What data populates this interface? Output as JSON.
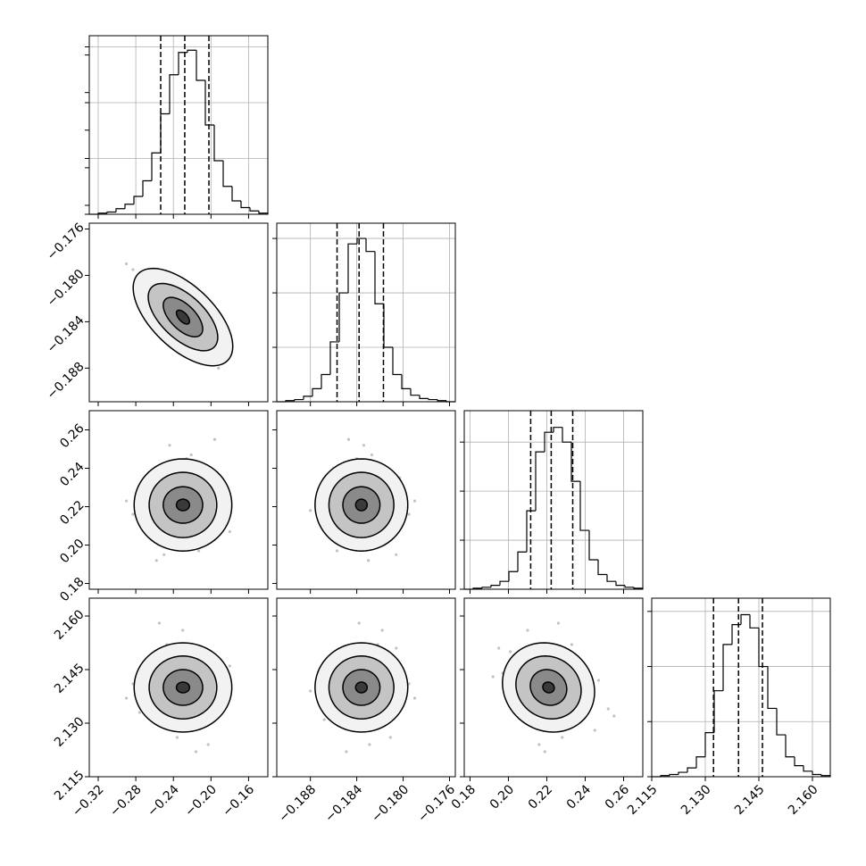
{
  "chart_data": {
    "type": "corner",
    "params": [
      {
        "range": [
          -0.3295,
          -0.1395
        ],
        "ticks": [
          {
            "value": -0.32,
            "label": "−0.32"
          },
          {
            "value": -0.28,
            "label": "−0.28"
          },
          {
            "value": -0.24,
            "label": "−0.24"
          },
          {
            "value": -0.2,
            "label": "−0.20"
          },
          {
            "value": -0.16,
            "label": "−0.16"
          }
        ],
        "bins": [
          -0.3295,
          -0.32,
          -0.3105,
          -0.301,
          -0.2915,
          -0.282,
          -0.2725,
          -0.263,
          -0.2535,
          -0.244,
          -0.2345,
          -0.225,
          -0.2155,
          -0.206,
          -0.1965,
          -0.187,
          -0.1775,
          -0.168,
          -0.1585,
          -0.149,
          -0.1395
        ],
        "counts": [
          0,
          1,
          2,
          5,
          9,
          16,
          30,
          55,
          90,
          125,
          145,
          147,
          120,
          80,
          48,
          25,
          12,
          6,
          3,
          1
        ],
        "hist_ylim": [
          0,
          160
        ],
        "hist_yticks": [
          0,
          50,
          100,
          150
        ],
        "quantiles": [
          -0.2535,
          -0.2279,
          -0.2022
        ]
      },
      {
        "range": [
          -0.1909,
          -0.1755
        ],
        "ticks": [
          {
            "value": -0.188,
            "label": "−0.188"
          },
          {
            "value": -0.184,
            "label": "−0.184"
          },
          {
            "value": -0.18,
            "label": "−0.180"
          },
          {
            "value": -0.176,
            "label": "−0.176"
          }
        ],
        "bins": [
          -0.1909,
          -0.19013,
          -0.18936,
          -0.18859,
          -0.18782,
          -0.18705,
          -0.18628,
          -0.18551,
          -0.18474,
          -0.18397,
          -0.1832,
          -0.18243,
          -0.18166,
          -0.18089,
          -0.18012,
          -0.17935,
          -0.17858,
          -0.17781,
          -0.17704,
          -0.17627,
          -0.1755
        ],
        "counts": [
          0,
          1,
          2,
          5,
          12,
          25,
          55,
          100,
          145,
          150,
          138,
          90,
          50,
          25,
          12,
          6,
          3,
          2,
          1,
          0
        ],
        "hist_ylim": [
          0,
          164
        ],
        "hist_yticks": [
          0,
          50,
          100,
          150
        ],
        "quantiles": [
          -0.1857,
          -0.1838,
          -0.1817
        ]
      },
      {
        "range": [
          0.177,
          0.27
        ],
        "ticks": [
          0.18,
          {
            "value": 0.2,
            "label": "0.20"
          },
          0.22,
          0.24,
          0.26
        ],
        "bins": [
          0.177,
          0.18165,
          0.1863,
          0.19095,
          0.1956,
          0.20025,
          0.2049,
          0.20955,
          0.2142,
          0.21885,
          0.2235,
          0.22815,
          0.2328,
          0.23745,
          0.2421,
          0.24675,
          0.2514,
          0.25605,
          0.2607,
          0.26535,
          0.27
        ],
        "counts": [
          0,
          1,
          2,
          4,
          8,
          18,
          38,
          80,
          140,
          160,
          165,
          150,
          110,
          60,
          30,
          15,
          8,
          4,
          2,
          1
        ],
        "hist_ylim": [
          0,
          182
        ],
        "hist_yticks": [
          0,
          50,
          100,
          150
        ],
        "quantiles": [
          0.2116,
          0.2223,
          0.2335
        ]
      },
      {
        "range": [
          2.115,
          2.165
        ],
        "ticks": [
          2.115,
          {
            "value": 2.13,
            "label": "2.130"
          },
          2.145,
          {
            "value": 2.16,
            "label": "2.160"
          }
        ],
        "bins": [
          2.115,
          2.1175,
          2.12,
          2.1225,
          2.125,
          2.1275,
          2.13,
          2.1325,
          2.135,
          2.1375,
          2.14,
          2.1425,
          2.145,
          2.1475,
          2.15,
          2.1525,
          2.155,
          2.1575,
          2.16,
          2.1625,
          2.165
        ],
        "counts": [
          0,
          1,
          2,
          4,
          8,
          18,
          40,
          78,
          120,
          138,
          147,
          135,
          100,
          62,
          38,
          18,
          10,
          5,
          2,
          1
        ],
        "hist_ylim": [
          0,
          162
        ],
        "hist_yticks": [
          0,
          50,
          100,
          150
        ],
        "quantiles": [
          2.1323,
          2.1393,
          2.146
        ]
      }
    ],
    "samples": [
      [
        -0.231,
        -0.1832,
        0.219,
        2.141
      ],
      [
        -0.205,
        -0.1851,
        0.231,
        2.135
      ],
      [
        -0.252,
        -0.1815,
        0.208,
        2.146
      ],
      [
        -0.218,
        -0.1846,
        0.226,
        2.132
      ],
      [
        -0.262,
        -0.1809,
        0.214,
        2.139
      ],
      [
        -0.195,
        -0.1863,
        0.238,
        2.143
      ],
      [
        -0.24,
        -0.1828,
        0.201,
        2.15
      ],
      [
        -0.226,
        -0.184,
        0.245,
        2.128
      ],
      [
        -0.271,
        -0.1801,
        0.222,
        2.137
      ],
      [
        -0.213,
        -0.1857,
        0.197,
        2.144
      ],
      [
        -0.247,
        -0.1822,
        0.233,
        2.152
      ],
      [
        -0.199,
        -0.1868,
        0.212,
        2.131
      ],
      [
        -0.236,
        -0.1811,
        0.228,
        2.126
      ],
      [
        -0.283,
        -0.1795,
        0.216,
        2.141
      ],
      [
        -0.209,
        -0.1843,
        0.205,
        2.148
      ],
      [
        -0.224,
        -0.186,
        0.24,
        2.136
      ],
      [
        -0.258,
        -0.183,
        0.192,
        2.143
      ],
      [
        -0.186,
        -0.1872,
        0.225,
        2.14
      ],
      [
        -0.244,
        -0.1834,
        0.252,
        2.134
      ],
      [
        -0.23,
        -0.1818,
        0.21,
        2.156
      ],
      [
        -0.216,
        -0.1849,
        0.219,
        2.122
      ],
      [
        -0.265,
        -0.1824,
        0.236,
        2.145
      ],
      [
        -0.201,
        -0.1839,
        0.203,
        2.138
      ],
      [
        -0.238,
        -0.1855,
        0.229,
        2.147
      ],
      [
        -0.276,
        -0.1812,
        0.211,
        2.133
      ],
      [
        -0.221,
        -0.1827,
        0.247,
        2.142
      ],
      [
        -0.192,
        -0.188,
        0.218,
        2.139
      ],
      [
        -0.25,
        -0.1806,
        0.195,
        2.151
      ],
      [
        -0.233,
        -0.1845,
        0.231,
        2.129
      ],
      [
        -0.211,
        -0.1836,
        0.214,
        2.144
      ],
      [
        -0.29,
        -0.179,
        0.223,
        2.137
      ],
      [
        -0.18,
        -0.1866,
        0.207,
        2.146
      ],
      [
        -0.245,
        -0.1819,
        0.242,
        2.135
      ],
      [
        -0.227,
        -0.1852,
        0.2,
        2.14
      ],
      [
        -0.255,
        -0.1838,
        0.226,
        2.158
      ],
      [
        -0.203,
        -0.1829,
        0.216,
        2.124
      ],
      [
        -0.268,
        -0.1803,
        0.235,
        2.143
      ],
      [
        -0.219,
        -0.1861,
        0.209,
        2.136
      ],
      [
        -0.242,
        -0.1825,
        0.221,
        2.149
      ],
      [
        -0.196,
        -0.1847,
        0.255,
        2.132
      ]
    ],
    "contours": [
      {
        "cx": -0.2298,
        "cy": -0.1836,
        "rx": [
          0.053,
          0.037,
          0.021,
          0.007
        ],
        "ry": [
          0.0042,
          0.0029,
          0.0017,
          0.0006
        ],
        "corr": -0.6
      },
      {
        "cx": -0.2298,
        "cy": 0.2209,
        "rx": [
          0.052,
          0.036,
          0.021,
          0.007
        ],
        "ry": [
          0.024,
          0.017,
          0.0095,
          0.003
        ],
        "corr": 0
      },
      {
        "cx": -0.1836,
        "cy": 0.2209,
        "rx": [
          0.004,
          0.0028,
          0.0016,
          0.0005
        ],
        "ry": [
          0.024,
          0.017,
          0.0095,
          0.003
        ],
        "corr": 0
      },
      {
        "cx": -0.2298,
        "cy": 2.14,
        "rx": [
          0.052,
          0.036,
          0.021,
          0.007
        ],
        "ry": [
          0.0125,
          0.0088,
          0.005,
          0.0015
        ],
        "corr": 0
      },
      {
        "cx": -0.1836,
        "cy": 2.14,
        "rx": [
          0.004,
          0.0028,
          0.0016,
          0.0005
        ],
        "ry": [
          0.0125,
          0.0088,
          0.005,
          0.0015
        ],
        "corr": 0
      },
      {
        "cx": 0.2209,
        "cy": 2.14,
        "rx": [
          0.024,
          0.017,
          0.0095,
          0.003
        ],
        "ry": [
          0.0125,
          0.0088,
          0.005,
          0.0015
        ],
        "corr": -0.1
      }
    ],
    "grid": true
  }
}
